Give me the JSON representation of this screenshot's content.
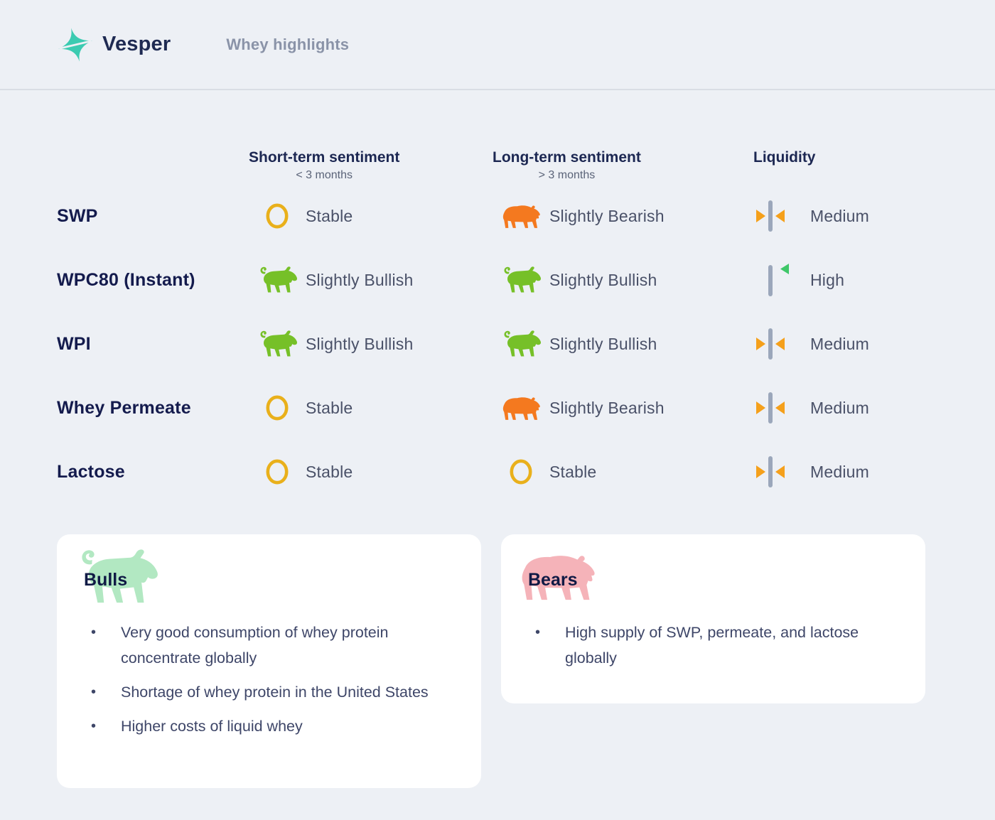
{
  "header": {
    "brand": "Vesper",
    "page_title": "Whey highlights",
    "logo_icon": "sparkle-icon"
  },
  "table": {
    "columns": [
      {
        "label": "Short-term sentiment",
        "sublabel": "< 3 months"
      },
      {
        "label": "Long-term sentiment",
        "sublabel": "> 3 months"
      },
      {
        "label": "Liquidity",
        "sublabel": ""
      }
    ],
    "rows": [
      {
        "product": "SWP",
        "short_term": {
          "sentiment": "Stable",
          "icon": "stable-icon"
        },
        "long_term": {
          "sentiment": "Slightly Bearish",
          "icon": "bear-icon"
        },
        "liquidity": {
          "level": "Medium",
          "icon": "liquidity-medium-icon"
        }
      },
      {
        "product": "WPC80 (Instant)",
        "short_term": {
          "sentiment": "Slightly Bullish",
          "icon": "bull-icon"
        },
        "long_term": {
          "sentiment": "Slightly Bullish",
          "icon": "bull-icon"
        },
        "liquidity": {
          "level": "High",
          "icon": "liquidity-high-icon"
        }
      },
      {
        "product": "WPI",
        "short_term": {
          "sentiment": "Slightly Bullish",
          "icon": "bull-icon"
        },
        "long_term": {
          "sentiment": "Slightly Bullish",
          "icon": "bull-icon"
        },
        "liquidity": {
          "level": "Medium",
          "icon": "liquidity-medium-icon"
        }
      },
      {
        "product": "Whey Permeate",
        "short_term": {
          "sentiment": "Stable",
          "icon": "stable-icon"
        },
        "long_term": {
          "sentiment": "Slightly Bearish",
          "icon": "bear-icon"
        },
        "liquidity": {
          "level": "Medium",
          "icon": "liquidity-medium-icon"
        }
      },
      {
        "product": "Lactose",
        "short_term": {
          "sentiment": "Stable",
          "icon": "stable-icon"
        },
        "long_term": {
          "sentiment": "Stable",
          "icon": "stable-icon"
        },
        "liquidity": {
          "level": "Medium",
          "icon": "liquidity-medium-icon"
        }
      }
    ]
  },
  "cards": {
    "bulls": {
      "title": "Bulls",
      "icon": "bull-icon",
      "items": [
        "Very good consumption of whey protein concentrate globally",
        "Shortage of whey protein in the United States",
        "Higher costs of liquid whey"
      ]
    },
    "bears": {
      "title": "Bears",
      "icon": "bear-icon",
      "items": [
        "High supply of SWP, permeate, and lactose globally"
      ]
    }
  },
  "colors": {
    "background": "#EDF0F5",
    "teal": "#3BCBB1",
    "bull_green": "#76C028",
    "bear_orange": "#F4791F",
    "stable_yellow": "#E9B01B",
    "bar_gray": "#9BA7BB",
    "arrow_amber": "#F5A01B",
    "high_green": "#3FC769",
    "bulls_pale": "#B2E8C2",
    "bears_pink": "#F5B3B9",
    "navy": "#141B4D"
  }
}
